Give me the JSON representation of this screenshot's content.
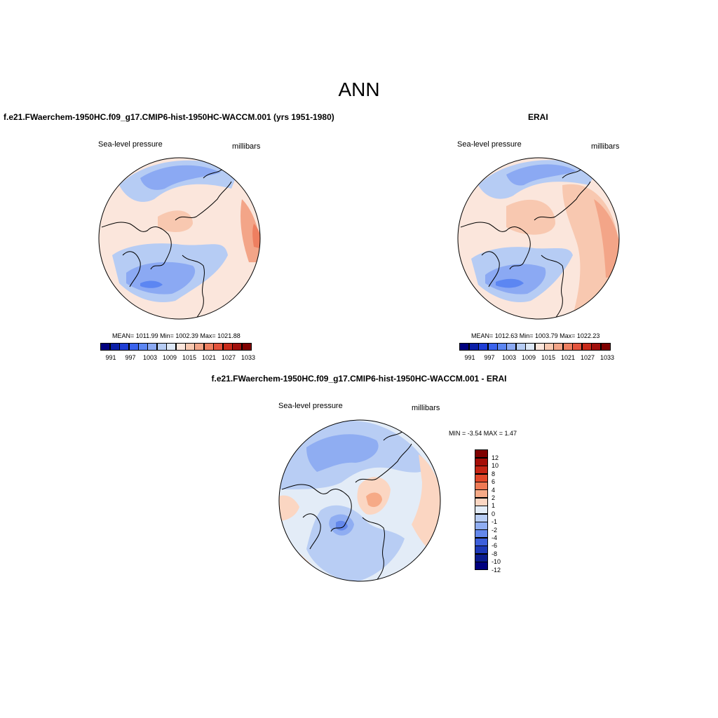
{
  "main_title": "ANN",
  "panels": {
    "model": {
      "title": "f.e21.FWaerchem-1950HC.f09_g17.CMIP6-hist-1950HC-WACCM.001 (yrs 1951-1980)",
      "variable": "Sea-level pressure",
      "units": "millibars",
      "stats": "MEAN= 1011.99  Min= 1002.39  Max= 1021.88",
      "colorbar_labels": [
        "991",
        "997",
        "1003",
        "1009",
        "1015",
        "1021",
        "1027",
        "1033"
      ]
    },
    "obs": {
      "title": "ERAI",
      "variable": "Sea-level pressure",
      "units": "millibars",
      "stats": "MEAN= 1012.63  Min= 1003.79  Max= 1022.23",
      "colorbar_labels": [
        "991",
        "997",
        "1003",
        "1009",
        "1015",
        "1021",
        "1027",
        "1033"
      ]
    },
    "diff": {
      "title": "f.e21.FWaerchem-1950HC.f09_g17.CMIP6-hist-1950HC-WACCM.001 - ERAI",
      "variable": "Sea-level pressure",
      "units": "millibars",
      "stats": "MIN =  -3.54 MAX =   1.47",
      "colorbar_labels": [
        "12",
        "10",
        "8",
        "6",
        "4",
        "2",
        "1",
        "0",
        "-1",
        "-2",
        "-4",
        "-6",
        "-8",
        "-10",
        "-12"
      ]
    }
  },
  "colors": {
    "seq": [
      "#00007f",
      "#0b1fa8",
      "#1f3ed6",
      "#3a63ee",
      "#5c86f2",
      "#8ba9f3",
      "#b6ccf4",
      "#dde8f7",
      "#fbe6dc",
      "#f8c8b0",
      "#f3a588",
      "#ee7f60",
      "#e4533c",
      "#c82a1a",
      "#a10f0b",
      "#7f0000"
    ],
    "div": [
      "#7f0000",
      "#a50d07",
      "#c52414",
      "#e2482a",
      "#ef7a55",
      "#f6aa87",
      "#fbd6c2",
      "#e3ecf7",
      "#b8cdf4",
      "#8fadf2",
      "#6488ec",
      "#3d5fdb",
      "#1d38b7",
      "#0b1c8e",
      "#00007f"
    ]
  }
}
